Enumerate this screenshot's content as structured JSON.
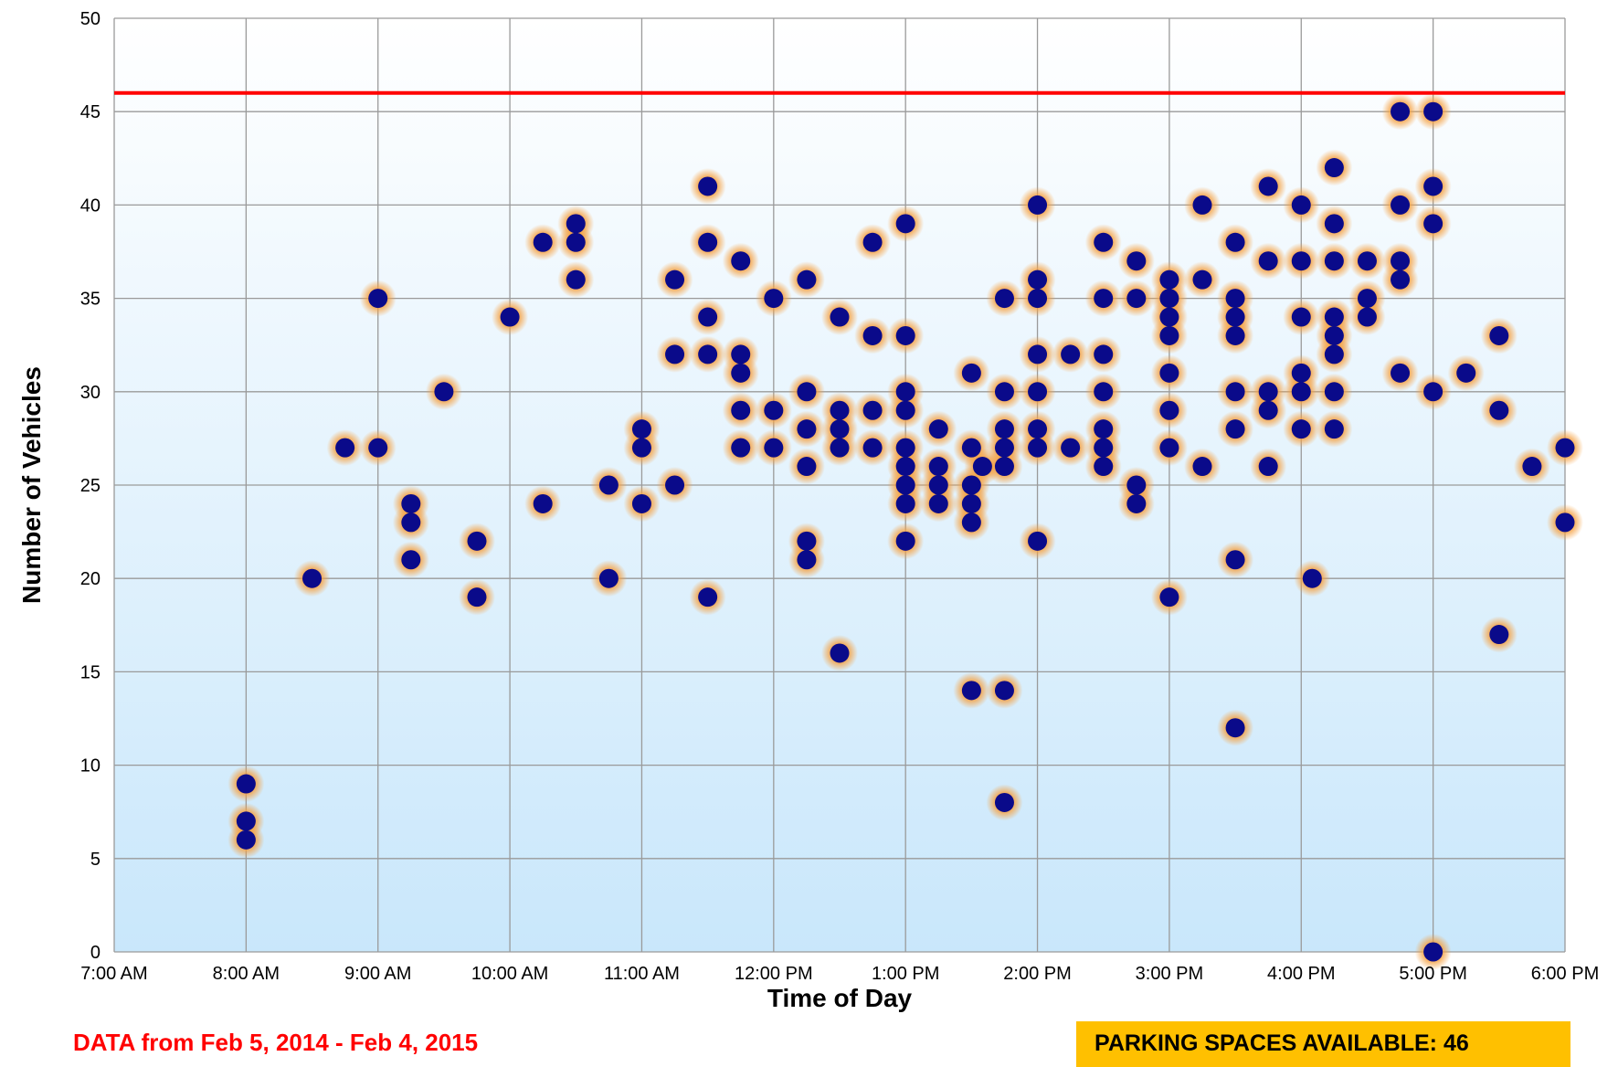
{
  "chart_data": {
    "type": "scatter",
    "title": "",
    "xlabel": "Time of Day",
    "ylabel": "Number of Vehicles",
    "x_ticks": [
      "7:00 AM",
      "8:00 AM",
      "9:00 AM",
      "10:00 AM",
      "11:00 AM",
      "12:00 PM",
      "1:00 PM",
      "2:00 PM",
      "3:00 PM",
      "4:00 PM",
      "5:00 PM",
      "6:00 PM"
    ],
    "xlim": [
      "7:00 AM",
      "6:00 PM"
    ],
    "ylim": [
      0,
      50
    ],
    "y_ticks": [
      0,
      5,
      10,
      15,
      20,
      25,
      30,
      35,
      40,
      45,
      50
    ],
    "grid": true,
    "reference_line": {
      "y": 46,
      "color": "#ff0000"
    },
    "point_color": "#0a0a8a",
    "glow_color": "#f5a040",
    "background_gradient": [
      "#ffffff",
      "#c9e7fb"
    ],
    "points": [
      {
        "x": "8:00 AM",
        "y": 9
      },
      {
        "x": "8:00 AM",
        "y": 7
      },
      {
        "x": "8:00 AM",
        "y": 6
      },
      {
        "x": "8:30 AM",
        "y": 20
      },
      {
        "x": "8:45 AM",
        "y": 27
      },
      {
        "x": "9:00 AM",
        "y": 35
      },
      {
        "x": "9:00 AM",
        "y": 27
      },
      {
        "x": "9:15 AM",
        "y": 24
      },
      {
        "x": "9:15 AM",
        "y": 23
      },
      {
        "x": "9:15 AM",
        "y": 21
      },
      {
        "x": "9:30 AM",
        "y": 30
      },
      {
        "x": "9:45 AM",
        "y": 22
      },
      {
        "x": "9:45 AM",
        "y": 19
      },
      {
        "x": "10:00 AM",
        "y": 34
      },
      {
        "x": "10:15 AM",
        "y": 38
      },
      {
        "x": "10:15 AM",
        "y": 24
      },
      {
        "x": "10:30 AM",
        "y": 39
      },
      {
        "x": "10:30 AM",
        "y": 38
      },
      {
        "x": "10:30 AM",
        "y": 36
      },
      {
        "x": "10:45 AM",
        "y": 25
      },
      {
        "x": "10:45 AM",
        "y": 20
      },
      {
        "x": "11:00 AM",
        "y": 28
      },
      {
        "x": "11:00 AM",
        "y": 27
      },
      {
        "x": "11:00 AM",
        "y": 24
      },
      {
        "x": "11:15 AM",
        "y": 36
      },
      {
        "x": "11:15 AM",
        "y": 32
      },
      {
        "x": "11:15 AM",
        "y": 25
      },
      {
        "x": "11:30 AM",
        "y": 41
      },
      {
        "x": "11:30 AM",
        "y": 38
      },
      {
        "x": "11:30 AM",
        "y": 34
      },
      {
        "x": "11:30 AM",
        "y": 32
      },
      {
        "x": "11:30 AM",
        "y": 19
      },
      {
        "x": "11:45 AM",
        "y": 37
      },
      {
        "x": "11:45 AM",
        "y": 32
      },
      {
        "x": "11:45 AM",
        "y": 31
      },
      {
        "x": "11:45 AM",
        "y": 29
      },
      {
        "x": "11:45 AM",
        "y": 27
      },
      {
        "x": "12:00 PM",
        "y": 35
      },
      {
        "x": "12:00 PM",
        "y": 29
      },
      {
        "x": "12:00 PM",
        "y": 27
      },
      {
        "x": "12:15 PM",
        "y": 36
      },
      {
        "x": "12:15 PM",
        "y": 30
      },
      {
        "x": "12:15 PM",
        "y": 28
      },
      {
        "x": "12:15 PM",
        "y": 26
      },
      {
        "x": "12:15 PM",
        "y": 22
      },
      {
        "x": "12:15 PM",
        "y": 21
      },
      {
        "x": "12:30 PM",
        "y": 34
      },
      {
        "x": "12:30 PM",
        "y": 29
      },
      {
        "x": "12:30 PM",
        "y": 28
      },
      {
        "x": "12:30 PM",
        "y": 27
      },
      {
        "x": "12:30 PM",
        "y": 16
      },
      {
        "x": "12:45 PM",
        "y": 38
      },
      {
        "x": "12:45 PM",
        "y": 33
      },
      {
        "x": "12:45 PM",
        "y": 29
      },
      {
        "x": "12:45 PM",
        "y": 27
      },
      {
        "x": "1:00 PM",
        "y": 39
      },
      {
        "x": "1:00 PM",
        "y": 33
      },
      {
        "x": "1:00 PM",
        "y": 30
      },
      {
        "x": "1:00 PM",
        "y": 29
      },
      {
        "x": "1:00 PM",
        "y": 27
      },
      {
        "x": "1:00 PM",
        "y": 26
      },
      {
        "x": "1:00 PM",
        "y": 25
      },
      {
        "x": "1:00 PM",
        "y": 24
      },
      {
        "x": "1:00 PM",
        "y": 22
      },
      {
        "x": "1:15 PM",
        "y": 28
      },
      {
        "x": "1:15 PM",
        "y": 26
      },
      {
        "x": "1:15 PM",
        "y": 25
      },
      {
        "x": "1:15 PM",
        "y": 24
      },
      {
        "x": "1:30 PM",
        "y": 31
      },
      {
        "x": "1:30 PM",
        "y": 27
      },
      {
        "x": "1:30 PM",
        "y": 25
      },
      {
        "x": "1:30 PM",
        "y": 24
      },
      {
        "x": "1:30 PM",
        "y": 23
      },
      {
        "x": "1:30 PM",
        "y": 14
      },
      {
        "x": "1:35 PM",
        "y": 26
      },
      {
        "x": "1:45 PM",
        "y": 35
      },
      {
        "x": "1:45 PM",
        "y": 30
      },
      {
        "x": "1:45 PM",
        "y": 28
      },
      {
        "x": "1:45 PM",
        "y": 27
      },
      {
        "x": "1:45 PM",
        "y": 26
      },
      {
        "x": "1:45 PM",
        "y": 14
      },
      {
        "x": "1:45 PM",
        "y": 8
      },
      {
        "x": "2:00 PM",
        "y": 40
      },
      {
        "x": "2:00 PM",
        "y": 36
      },
      {
        "x": "2:00 PM",
        "y": 35
      },
      {
        "x": "2:00 PM",
        "y": 32
      },
      {
        "x": "2:00 PM",
        "y": 30
      },
      {
        "x": "2:00 PM",
        "y": 28
      },
      {
        "x": "2:00 PM",
        "y": 27
      },
      {
        "x": "2:00 PM",
        "y": 22
      },
      {
        "x": "2:15 PM",
        "y": 32
      },
      {
        "x": "2:15 PM",
        "y": 27
      },
      {
        "x": "2:30 PM",
        "y": 38
      },
      {
        "x": "2:30 PM",
        "y": 35
      },
      {
        "x": "2:30 PM",
        "y": 32
      },
      {
        "x": "2:30 PM",
        "y": 30
      },
      {
        "x": "2:30 PM",
        "y": 28
      },
      {
        "x": "2:30 PM",
        "y": 27
      },
      {
        "x": "2:30 PM",
        "y": 26
      },
      {
        "x": "2:45 PM",
        "y": 37
      },
      {
        "x": "2:45 PM",
        "y": 35
      },
      {
        "x": "2:45 PM",
        "y": 25
      },
      {
        "x": "2:45 PM",
        "y": 24
      },
      {
        "x": "3:00 PM",
        "y": 36
      },
      {
        "x": "3:00 PM",
        "y": 35
      },
      {
        "x": "3:00 PM",
        "y": 34
      },
      {
        "x": "3:00 PM",
        "y": 33
      },
      {
        "x": "3:00 PM",
        "y": 31
      },
      {
        "x": "3:00 PM",
        "y": 29
      },
      {
        "x": "3:00 PM",
        "y": 27
      },
      {
        "x": "3:00 PM",
        "y": 19
      },
      {
        "x": "3:15 PM",
        "y": 40
      },
      {
        "x": "3:15 PM",
        "y": 36
      },
      {
        "x": "3:15 PM",
        "y": 26
      },
      {
        "x": "3:30 PM",
        "y": 38
      },
      {
        "x": "3:30 PM",
        "y": 35
      },
      {
        "x": "3:30 PM",
        "y": 34
      },
      {
        "x": "3:30 PM",
        "y": 33
      },
      {
        "x": "3:30 PM",
        "y": 30
      },
      {
        "x": "3:30 PM",
        "y": 28
      },
      {
        "x": "3:30 PM",
        "y": 21
      },
      {
        "x": "3:30 PM",
        "y": 12
      },
      {
        "x": "3:45 PM",
        "y": 41
      },
      {
        "x": "3:45 PM",
        "y": 37
      },
      {
        "x": "3:45 PM",
        "y": 30
      },
      {
        "x": "3:45 PM",
        "y": 29
      },
      {
        "x": "3:45 PM",
        "y": 26
      },
      {
        "x": "4:00 PM",
        "y": 40
      },
      {
        "x": "4:00 PM",
        "y": 37
      },
      {
        "x": "4:00 PM",
        "y": 34
      },
      {
        "x": "4:00 PM",
        "y": 31
      },
      {
        "x": "4:00 PM",
        "y": 30
      },
      {
        "x": "4:00 PM",
        "y": 28
      },
      {
        "x": "4:05 PM",
        "y": 20
      },
      {
        "x": "4:15 PM",
        "y": 42
      },
      {
        "x": "4:15 PM",
        "y": 39
      },
      {
        "x": "4:15 PM",
        "y": 37
      },
      {
        "x": "4:15 PM",
        "y": 34
      },
      {
        "x": "4:15 PM",
        "y": 33
      },
      {
        "x": "4:15 PM",
        "y": 32
      },
      {
        "x": "4:15 PM",
        "y": 30
      },
      {
        "x": "4:15 PM",
        "y": 28
      },
      {
        "x": "4:30 PM",
        "y": 37
      },
      {
        "x": "4:30 PM",
        "y": 35
      },
      {
        "x": "4:30 PM",
        "y": 34
      },
      {
        "x": "4:45 PM",
        "y": 45
      },
      {
        "x": "4:45 PM",
        "y": 40
      },
      {
        "x": "4:45 PM",
        "y": 37
      },
      {
        "x": "4:45 PM",
        "y": 36
      },
      {
        "x": "4:45 PM",
        "y": 31
      },
      {
        "x": "5:00 PM",
        "y": 45
      },
      {
        "x": "5:00 PM",
        "y": 41
      },
      {
        "x": "5:00 PM",
        "y": 39
      },
      {
        "x": "5:00 PM",
        "y": 30
      },
      {
        "x": "5:00 PM",
        "y": 0
      },
      {
        "x": "5:15 PM",
        "y": 31
      },
      {
        "x": "5:30 PM",
        "y": 33
      },
      {
        "x": "5:30 PM",
        "y": 29
      },
      {
        "x": "5:30 PM",
        "y": 17
      },
      {
        "x": "5:45 PM",
        "y": 26
      },
      {
        "x": "6:00 PM",
        "y": 27
      },
      {
        "x": "6:00 PM",
        "y": 23
      }
    ]
  },
  "footer": {
    "data_note": "DATA from Feb 5, 2014 - Feb 4, 2015",
    "capacity_label": "PARKING SPACES AVAILABLE: 46"
  }
}
